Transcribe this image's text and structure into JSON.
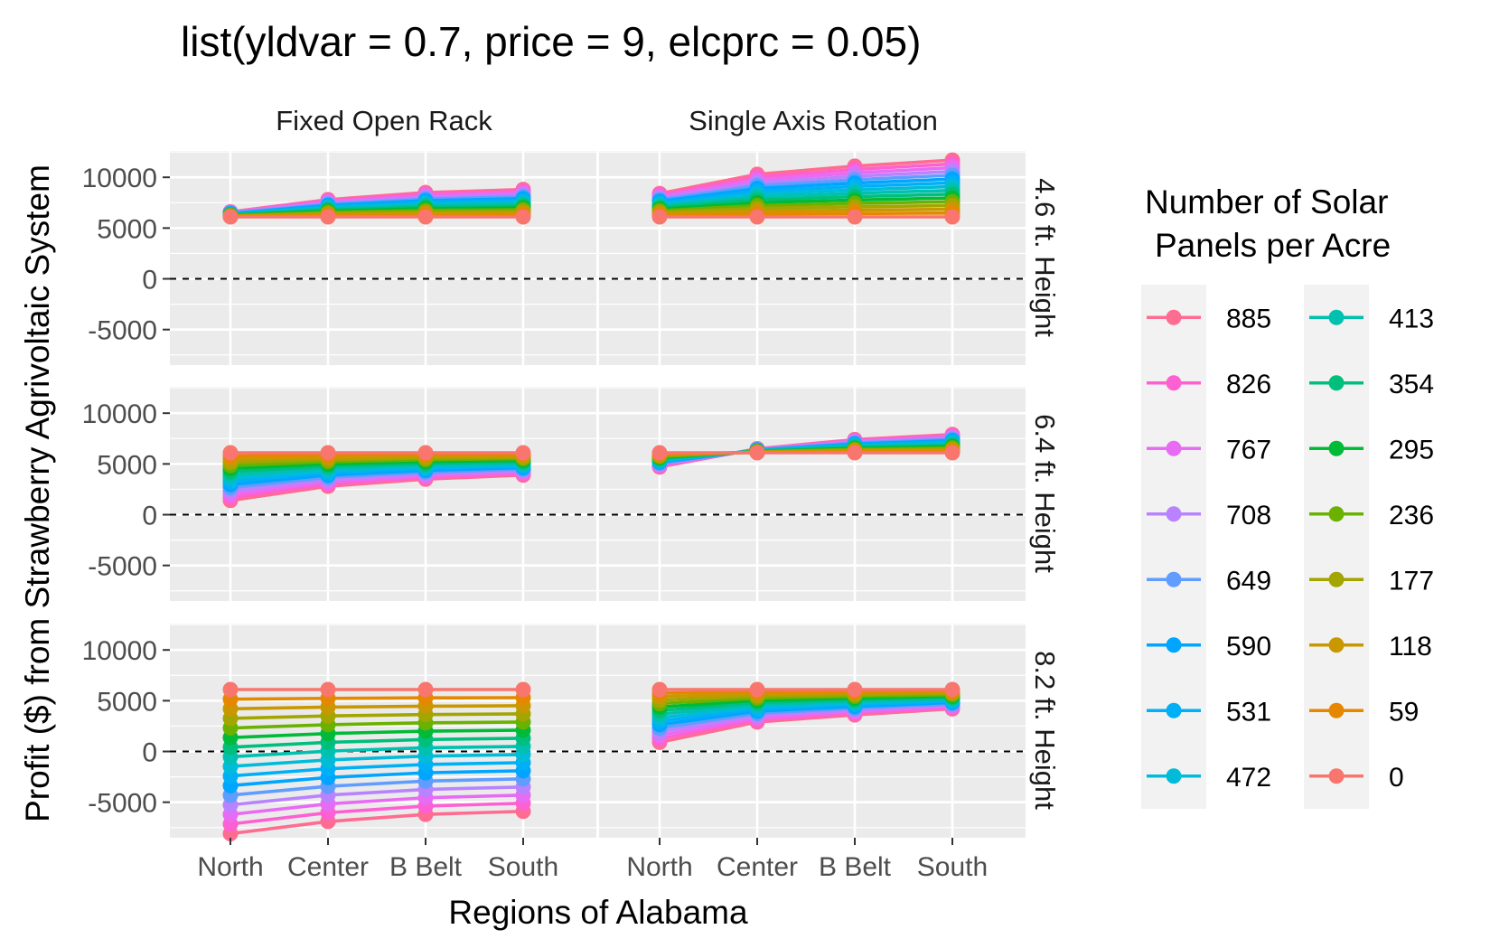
{
  "chart_data": {
    "type": "line",
    "title": "list(yldvar = 0.7, price = 9, elcprc = 0.05)",
    "xlabel": "Regions of Alabama",
    "ylabel": "Profit ($) from Strawberry Agrivoltaic System",
    "categories": [
      "North",
      "Center",
      "B Belt",
      "South"
    ],
    "ylim": [
      -8500,
      12600
    ],
    "yticks": [
      -5000,
      0,
      5000,
      10000
    ],
    "reference_line": {
      "y": 0,
      "style": "dashed"
    },
    "grid": true,
    "legend": {
      "title": "Number of Solar Panels per Acre",
      "position": "right",
      "columns": [
        [
          "885",
          "826",
          "767",
          "708",
          "649",
          "590",
          "531",
          "472"
        ],
        [
          "413",
          "354",
          "295",
          "236",
          "177",
          "118",
          "59",
          "0"
        ]
      ]
    },
    "series": [
      {
        "name": "0",
        "color": "#F8766D"
      },
      {
        "name": "59",
        "color": "#E58700"
      },
      {
        "name": "118",
        "color": "#C99800"
      },
      {
        "name": "177",
        "color": "#A3A500"
      },
      {
        "name": "236",
        "color": "#6BB100"
      },
      {
        "name": "295",
        "color": "#00BA38"
      },
      {
        "name": "354",
        "color": "#00BF7D"
      },
      {
        "name": "413",
        "color": "#00C0AF"
      },
      {
        "name": "472",
        "color": "#00BCD8"
      },
      {
        "name": "531",
        "color": "#00B0F6"
      },
      {
        "name": "590",
        "color": "#00A5FF"
      },
      {
        "name": "649",
        "color": "#619CFF"
      },
      {
        "name": "708",
        "color": "#B983FF"
      },
      {
        "name": "767",
        "color": "#E76BF3"
      },
      {
        "name": "826",
        "color": "#FD61D1"
      },
      {
        "name": "885",
        "color": "#FF6C91"
      }
    ],
    "facets": {
      "columns": [
        "Fixed Open Rack",
        "Single Axis Rotation"
      ],
      "rows": [
        "4.6 ft. Height",
        "6.4 ft. Height",
        "8.2 ft. Height"
      ],
      "panels": [
        {
          "row": "4.6 ft. Height",
          "column": "Fixed Open Rack",
          "panels_0": [
            6100,
            6100,
            6100,
            6100
          ],
          "panels_885": [
            6600,
            7800,
            8500,
            8800
          ]
        },
        {
          "row": "4.6 ft. Height",
          "column": "Single Axis Rotation",
          "panels_0": [
            6100,
            6100,
            6100,
            6100
          ],
          "panels_885": [
            8400,
            10300,
            11100,
            11700
          ]
        },
        {
          "row": "6.4 ft. Height",
          "column": "Fixed Open Rack",
          "panels_0": [
            6100,
            6100,
            6100,
            6100
          ],
          "panels_885": [
            1400,
            2800,
            3500,
            3900
          ]
        },
        {
          "row": "6.4 ft. Height",
          "column": "Single Axis Rotation",
          "panels_0": [
            6100,
            6100,
            6100,
            6100
          ],
          "panels_885": [
            4700,
            6500,
            7400,
            7900
          ]
        },
        {
          "row": "8.2 ft. Height",
          "column": "Fixed Open Rack",
          "panels_0": [
            6100,
            6100,
            6100,
            6100
          ],
          "panels_885": [
            -8100,
            -6900,
            -6200,
            -5900
          ]
        },
        {
          "row": "8.2 ft. Height",
          "column": "Single Axis Rotation",
          "panels_0": [
            6100,
            6100,
            6100,
            6100
          ],
          "panels_885": [
            900,
            2900,
            3600,
            4200
          ]
        }
      ]
    }
  }
}
